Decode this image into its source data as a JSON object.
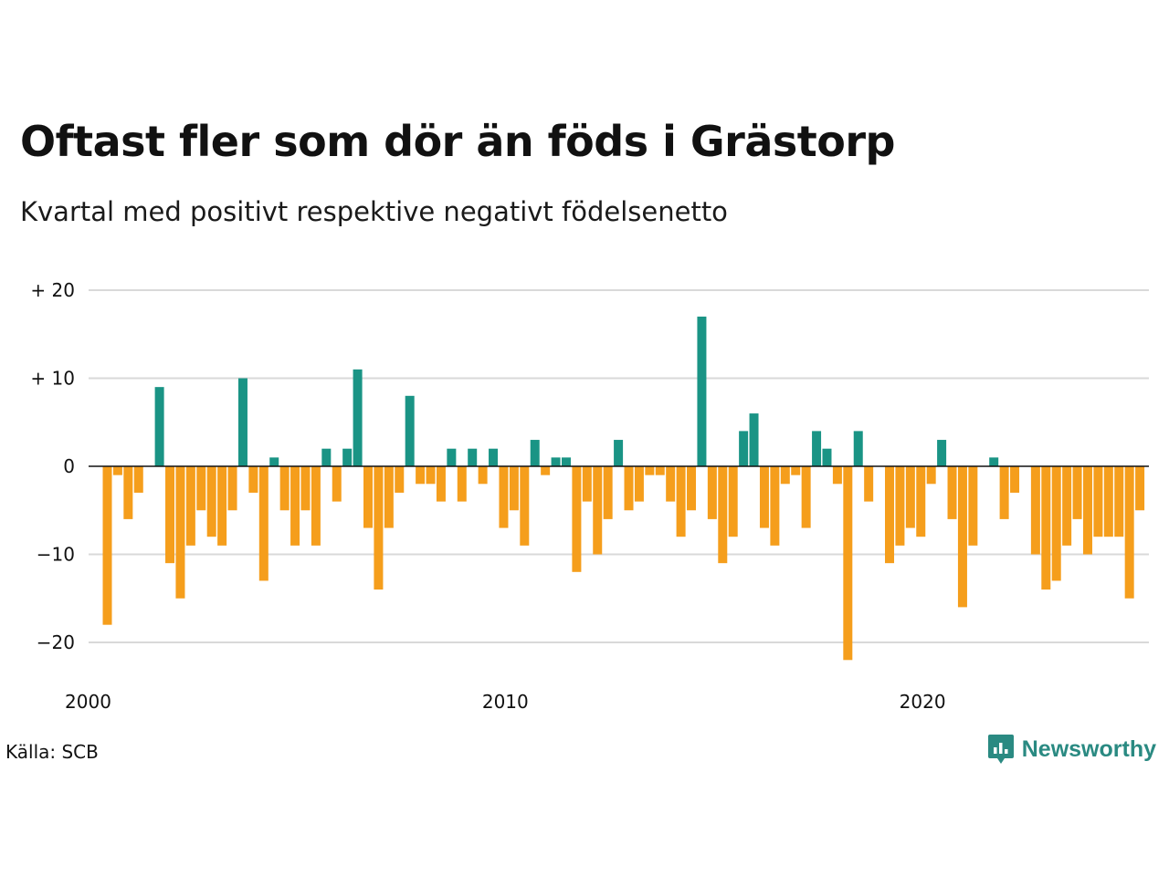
{
  "header": {
    "title": "Oftast fler som dör än föds i Grästorp",
    "subtitle": "Kvartal med positivt respektive negativt födelsenetto"
  },
  "footer": {
    "source": "Källa: SCB",
    "brand": "Newsworthy",
    "brand_icon": "bar-chart-speech-bubble-icon"
  },
  "colors": {
    "positive": "#1a9485",
    "negative": "#f59e1c",
    "grid": "#d9d9d9",
    "zero_line": "#111111",
    "brand": "#2a8a82"
  },
  "chart_data": {
    "type": "bar",
    "title": "Oftast fler som dör än föds i Grästorp",
    "subtitle": "Kvartal med positivt respektive negativt födelsenetto",
    "xlabel": "",
    "ylabel": "",
    "x_start": "2000 Q1",
    "x_ticks": [
      "2000",
      "2010",
      "2020"
    ],
    "y_ticks": [
      {
        "value": 20,
        "label": "+ 20"
      },
      {
        "value": 10,
        "label": "+ 10"
      },
      {
        "value": 0,
        "label": "0"
      },
      {
        "value": -10,
        "label": "−10"
      },
      {
        "value": -20,
        "label": "−20"
      }
    ],
    "ylim": [
      -22,
      20
    ],
    "grid": true,
    "values": [
      -18,
      -1,
      -6,
      -3,
      0,
      9,
      -11,
      -15,
      -9,
      -5,
      -8,
      -9,
      -5,
      10,
      -3,
      -13,
      1,
      -5,
      -9,
      -5,
      -9,
      2,
      -4,
      2,
      11,
      -7,
      -14,
      -7,
      -3,
      8,
      -2,
      -2,
      -4,
      2,
      -4,
      2,
      -2,
      2,
      -7,
      -5,
      -9,
      3,
      -1,
      1,
      1,
      -12,
      -4,
      -10,
      -6,
      3,
      -5,
      -4,
      -1,
      -1,
      -4,
      -8,
      -5,
      17,
      -6,
      -11,
      -8,
      4,
      6,
      -7,
      -9,
      -2,
      -1,
      -7,
      4,
      2,
      -2,
      -22,
      4,
      -4,
      0,
      -11,
      -9,
      -7,
      -8,
      -2,
      3,
      -6,
      -16,
      -9,
      0,
      1,
      -6,
      -3,
      0,
      -10,
      -14,
      -13,
      -9,
      -6,
      -10,
      -8,
      -8,
      -8,
      -15,
      -5
    ]
  }
}
